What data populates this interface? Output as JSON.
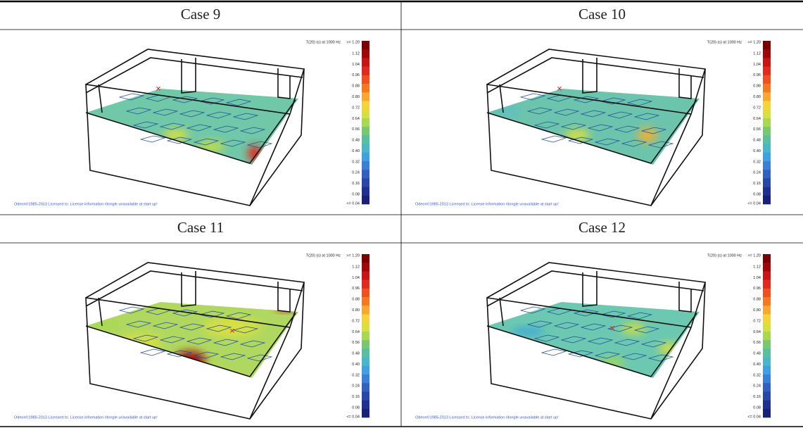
{
  "table": {
    "cells": [
      {
        "header": "Case 9"
      },
      {
        "header": "Case 10"
      },
      {
        "header": "Case 11"
      },
      {
        "header": "Case 12"
      }
    ],
    "legend": {
      "title": "T(20) (s) at 1000 Hz",
      "max_label": ">= 1.20",
      "ticks": [
        "1.12",
        "1.04",
        "0.96",
        "0.88",
        "0.80",
        "0.72",
        "0.64",
        "0.56",
        "0.48",
        "0.40",
        "0.32",
        "0.24",
        "0.16",
        "0.08"
      ],
      "min_label": "<= 0.04"
    },
    "footer": "Odeon©1985-2013   Licensed to: License information /dongle unavailable at start up!"
  }
}
